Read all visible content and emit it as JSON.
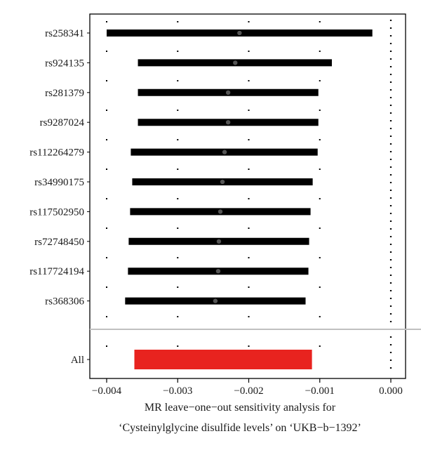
{
  "chart_data": {
    "type": "forest",
    "title": "",
    "xlabel_lines": [
      "MR leave−one−out sensitivity analysis for",
      "‘Cysteinylglycine disulfide levels’ on ‘UKB−b−1392’"
    ],
    "xlim": [
      -0.0042,
      0.0001
    ],
    "xticks": [
      -0.004,
      -0.003,
      -0.002,
      -0.001,
      0.0
    ],
    "xtick_labels": [
      "−0.004",
      "−0.003",
      "−0.002",
      "−0.001",
      "0.000"
    ],
    "reference_line": 0.0,
    "grid": false,
    "rows": [
      {
        "label": "rs258341",
        "lower": -0.004,
        "upper": -0.00026,
        "estimate": -0.00213
      },
      {
        "label": "rs924135",
        "lower": -0.00356,
        "upper": -0.00083,
        "estimate": -0.00219
      },
      {
        "label": "rs281379",
        "lower": -0.00356,
        "upper": -0.00102,
        "estimate": -0.00229
      },
      {
        "label": "rs9287024",
        "lower": -0.00356,
        "upper": -0.00102,
        "estimate": -0.00229
      },
      {
        "label": "rs112264279",
        "lower": -0.00366,
        "upper": -0.00103,
        "estimate": -0.00234
      },
      {
        "label": "rs34990175",
        "lower": -0.00364,
        "upper": -0.0011,
        "estimate": -0.00237
      },
      {
        "label": "rs117502950",
        "lower": -0.00367,
        "upper": -0.00113,
        "estimate": -0.0024
      },
      {
        "label": "rs72748450",
        "lower": -0.00369,
        "upper": -0.00115,
        "estimate": -0.00242
      },
      {
        "label": "rs117724194",
        "lower": -0.0037,
        "upper": -0.00116,
        "estimate": -0.00243
      },
      {
        "label": "rs368306",
        "lower": -0.00374,
        "upper": -0.0012,
        "estimate": -0.00247
      }
    ],
    "overall": {
      "label": "All",
      "lower": -0.00361,
      "upper": -0.00111,
      "estimate": -0.00236
    },
    "colors": {
      "interval": "#000000",
      "overall": "#e8231f",
      "separator": "#c0c0c0",
      "frame": "#000000"
    }
  }
}
